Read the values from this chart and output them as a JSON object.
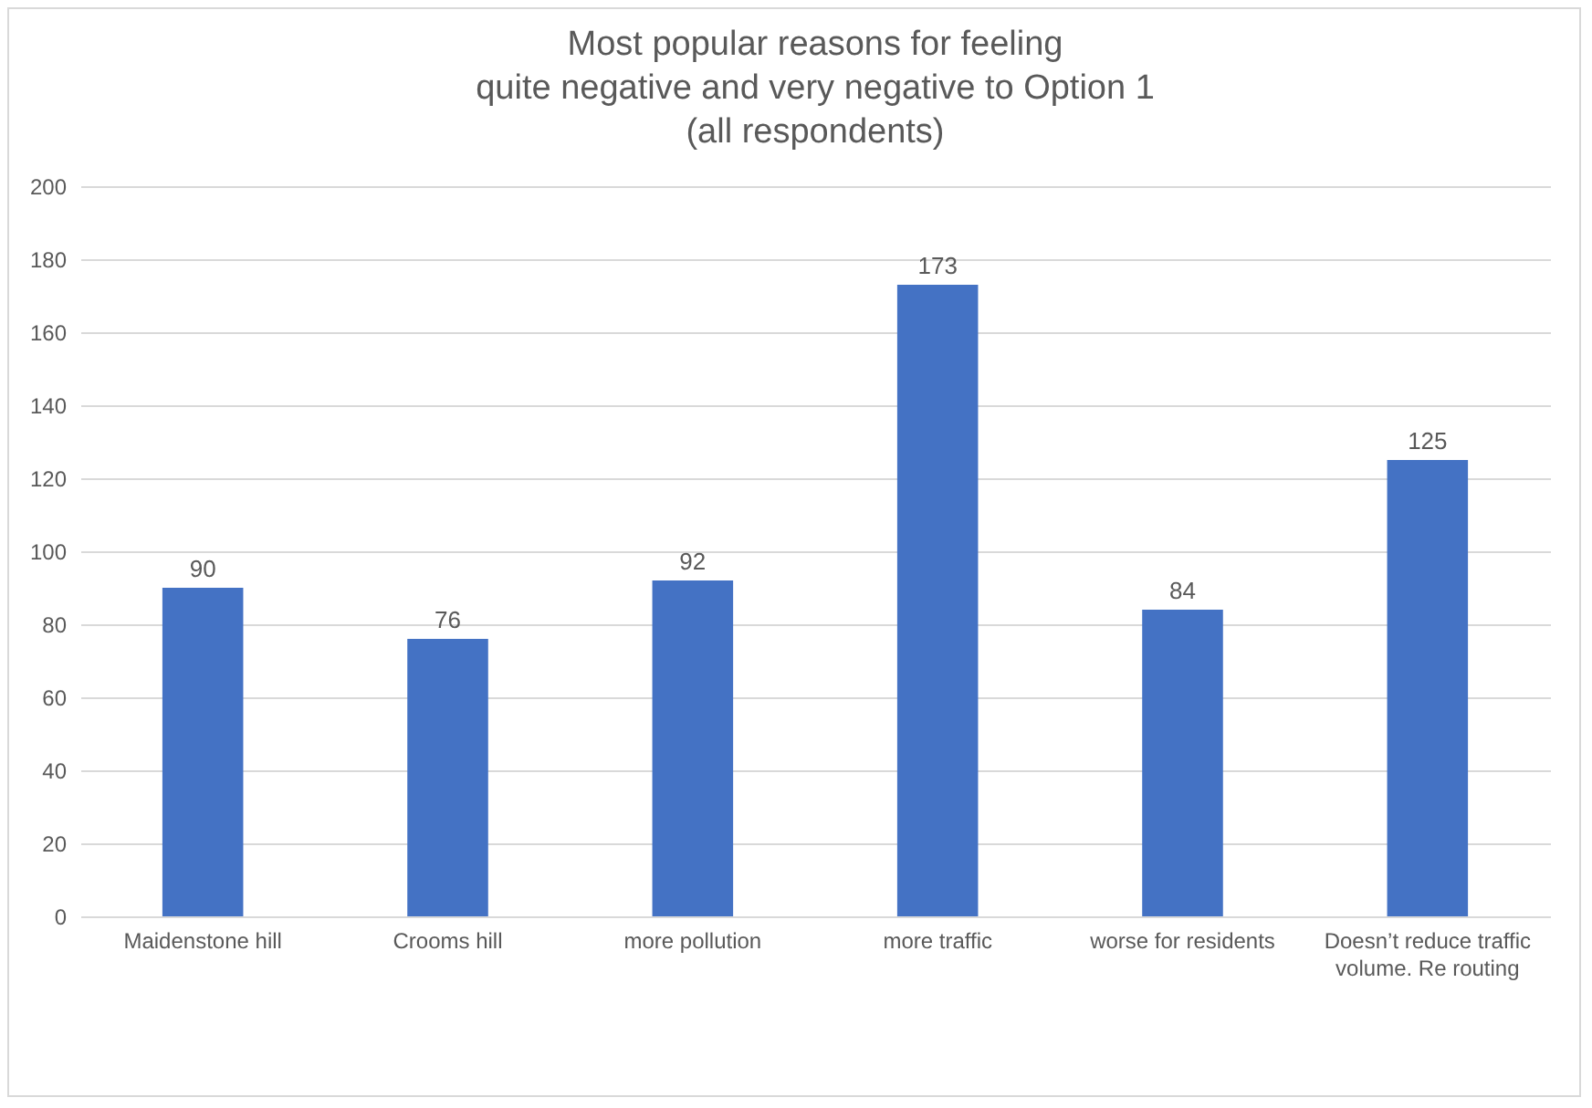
{
  "chart_data": {
    "type": "bar",
    "title": "Most popular reasons for feeling\nquite negative and very negative to Option 1\n(all respondents)",
    "categories": [
      "Maidenstone hill",
      "Crooms hill",
      "more pollution",
      "more traffic",
      "worse for residents",
      "Doesn’t reduce traffic volume. Re routing"
    ],
    "values": [
      90,
      76,
      92,
      173,
      84,
      125
    ],
    "color": "#4472c4",
    "ylim": [
      0,
      200
    ],
    "yticks": [
      0,
      20,
      40,
      60,
      80,
      100,
      120,
      140,
      160,
      180,
      200
    ],
    "grid": "y",
    "data_labels": true
  }
}
